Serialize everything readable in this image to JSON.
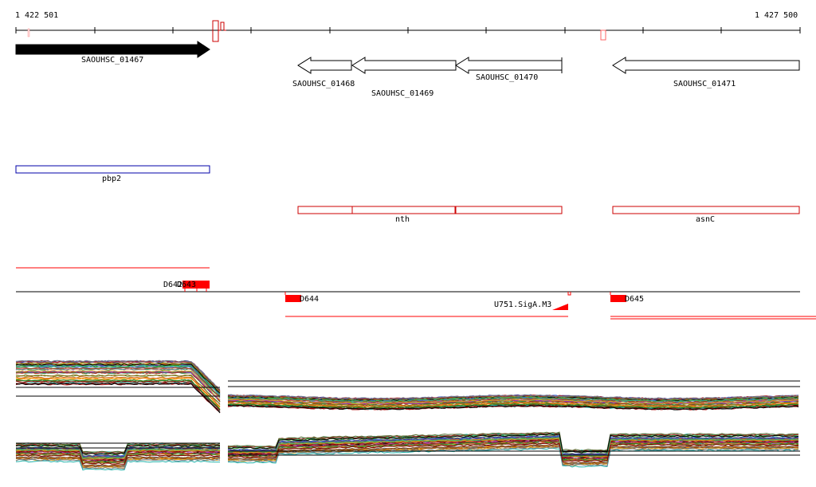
{
  "ruler": {
    "start_label": "1 422 501",
    "end_label": "1 427 500"
  },
  "genes": [
    {
      "id": "SAOUHSC_01467",
      "label": "SAOUHSC_01467",
      "strand": "+",
      "style": "filled"
    },
    {
      "id": "SAOUHSC_01468",
      "label": "SAOUHSC_01468",
      "strand": "-",
      "style": "outline"
    },
    {
      "id": "SAOUHSC_01469",
      "label": "SAOUHSC_01469",
      "strand": "-",
      "style": "outline"
    },
    {
      "id": "SAOUHSC_01470",
      "label": "SAOUHSC_01470",
      "strand": "-",
      "style": "outline"
    },
    {
      "id": "SAOUHSC_01471",
      "label": "SAOUHSC_01471",
      "strand": "-",
      "style": "outline"
    }
  ],
  "operons": [
    {
      "label": "pbp2",
      "color": "#0000aa"
    },
    {
      "label": "nth",
      "color": "#cc0000"
    },
    {
      "label": "asnC",
      "color": "#cc0000"
    }
  ],
  "features": [
    {
      "label": "D643",
      "color": "#ff0000"
    },
    {
      "label": "D642",
      "color": "#ff0000"
    },
    {
      "label": "D644",
      "color": "#ff0000"
    },
    {
      "label": "U751.SigA.M3",
      "color": "#ff0000"
    },
    {
      "label": "D645",
      "color": "#ff0000"
    }
  ],
  "colors": {
    "feature_red": "#ff0000",
    "operon_red": "#cc0000",
    "operon_blue": "#0000aa",
    "axis": "#000000"
  }
}
